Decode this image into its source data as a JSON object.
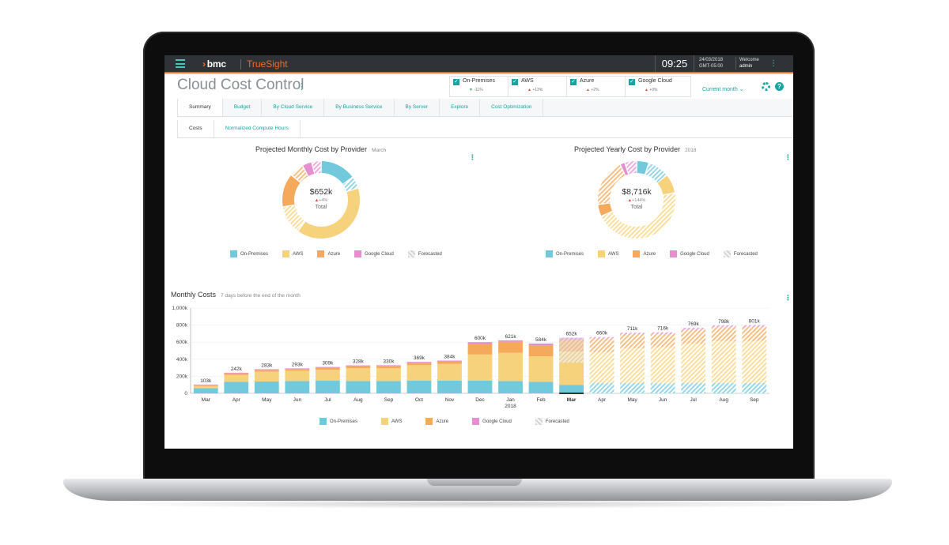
{
  "header": {
    "brand_company": "bmc",
    "brand_product": "TrueSight",
    "time": "09:25",
    "date": "24/03/2018",
    "timezone": "GMT-05:00",
    "welcome_label": "Welcome",
    "user": "admin"
  },
  "page": {
    "title": "Cloud Cost Control",
    "period_selector": "Current month"
  },
  "filters": [
    {
      "label": "On-Premises",
      "checked": true,
      "change": "-11%",
      "direction": "down"
    },
    {
      "label": "AWS",
      "checked": true,
      "change": "+13%",
      "direction": "up"
    },
    {
      "label": "Azure",
      "checked": true,
      "change": "+2%",
      "direction": "up"
    },
    {
      "label": "Google Cloud",
      "checked": true,
      "change": "+9%",
      "direction": "up"
    }
  ],
  "tabs": [
    "Summary",
    "Budget",
    "By Cloud Service",
    "By Business Service",
    "By Server",
    "Explore",
    "Cost Optimization"
  ],
  "subtabs": [
    "Costs",
    "Normalized Compute Hours"
  ],
  "colors": {
    "on_premises": "#72c9db",
    "aws": "#f7d27c",
    "azure": "#f5a95b",
    "google_cloud": "#e58ed0",
    "forecasted": "#e6e6e6",
    "accent": "#1aa3a3",
    "brand_orange": "#f26a21"
  },
  "legend": [
    "On-Premises",
    "AWS",
    "Azure",
    "Google Cloud",
    "Forecasted"
  ],
  "monthly_donut": {
    "title": "Projected Monthly Cost by Provider",
    "subtitle": "March",
    "total": "$652k",
    "change": "+4%",
    "label": "Total"
  },
  "yearly_donut": {
    "title": "Projected Yearly Cost by Provider",
    "subtitle": "2018",
    "total": "$8,716k",
    "change": "+144%",
    "label": "Total"
  },
  "monthly_costs": {
    "title": "Monthly Costs",
    "subtitle": "7 days before the end of the month"
  },
  "chart_data": [
    {
      "type": "pie",
      "title": "Projected Monthly Cost by Provider",
      "subtitle": "March",
      "slices": [
        {
          "name": "On-Premises",
          "value": 15
        },
        {
          "name": "On-Premises (forecast)",
          "value": 5
        },
        {
          "name": "AWS",
          "value": 40
        },
        {
          "name": "AWS (forecast)",
          "value": 12
        },
        {
          "name": "Azure",
          "value": 14
        },
        {
          "name": "Azure (forecast)",
          "value": 6
        },
        {
          "name": "Google Cloud",
          "value": 4
        },
        {
          "name": "Google Cloud (forecast)",
          "value": 4
        }
      ]
    },
    {
      "type": "pie",
      "title": "Projected Yearly Cost by Provider",
      "subtitle": "2018",
      "slices": [
        {
          "name": "On-Premises",
          "value": 5
        },
        {
          "name": "On-Premises (forecast)",
          "value": 9
        },
        {
          "name": "AWS",
          "value": 8
        },
        {
          "name": "AWS (forecast)",
          "value": 46
        },
        {
          "name": "Azure",
          "value": 5
        },
        {
          "name": "Azure (forecast)",
          "value": 20
        },
        {
          "name": "Google Cloud",
          "value": 2
        },
        {
          "name": "Google Cloud (forecast)",
          "value": 5
        }
      ]
    },
    {
      "type": "bar",
      "title": "Monthly Costs",
      "subtitle": "7 days before the end of the month",
      "categories": [
        "Mar",
        "Apr",
        "May",
        "Jun",
        "Jul",
        "Aug",
        "Sep",
        "Oct",
        "Nov",
        "Dec",
        "Jan",
        "Feb",
        "Mar",
        "Apr",
        "May",
        "Jun",
        "Jul",
        "Aug",
        "Sep"
      ],
      "year_label": "2018",
      "totals_labels": [
        "103k",
        "242k",
        "283k",
        "293k",
        "309k",
        "328k",
        "330k",
        "369k",
        "384k",
        "600k",
        "621k",
        "584k",
        "652k",
        "660k",
        "711k",
        "716k",
        "769k",
        "798k",
        "801k"
      ],
      "series": [
        {
          "name": "On-Premises",
          "values": [
            60,
            135,
            140,
            145,
            148,
            145,
            145,
            150,
            150,
            150,
            145,
            135,
            100,
            120,
            120,
            118,
            120,
            122,
            122
          ]
        },
        {
          "name": "AWS",
          "values": [
            25,
            80,
            115,
            120,
            130,
            150,
            150,
            180,
            195,
            305,
            330,
            300,
            390,
            360,
            410,
            420,
            460,
            490,
            492
          ]
        },
        {
          "name": "Azure",
          "values": [
            10,
            20,
            20,
            20,
            22,
            25,
            27,
            30,
            30,
            120,
            130,
            130,
            135,
            160,
            160,
            156,
            165,
            163,
            164
          ]
        },
        {
          "name": "Google Cloud",
          "values": [
            8,
            7,
            8,
            8,
            9,
            8,
            8,
            9,
            9,
            25,
            16,
            19,
            27,
            20,
            21,
            22,
            24,
            23,
            23
          ]
        }
      ],
      "forecast_start_index": 12,
      "forecast_only_from_index": 13,
      "highlight_index": 12,
      "ylim": [
        0,
        1000
      ],
      "yticks": [
        "0",
        "200k",
        "400k",
        "600k",
        "800k",
        "1,000k"
      ]
    }
  ]
}
